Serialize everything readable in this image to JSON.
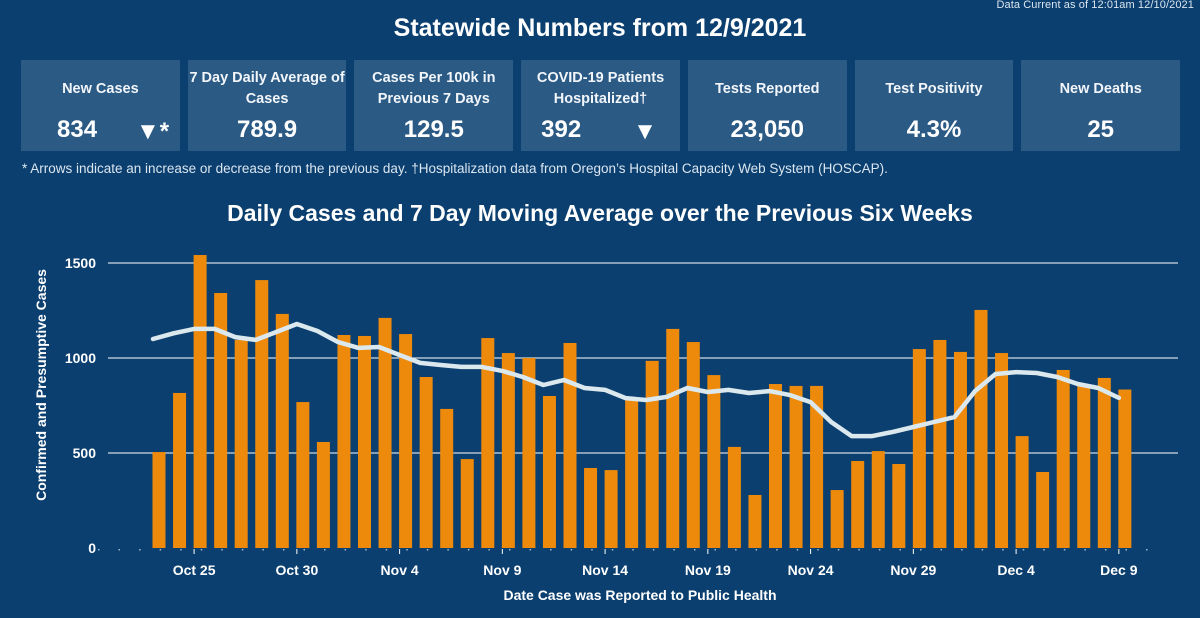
{
  "header": {
    "data_current": "Data Current as of 12:01am 12/10/2021",
    "title": "Statewide Numbers from 12/9/2021"
  },
  "cards": [
    {
      "label": "New Cases",
      "value": "834",
      "arrow": "▼*",
      "trend": "down"
    },
    {
      "label": "7 Day Daily Average of Cases",
      "value": "789.9"
    },
    {
      "label": "Cases Per 100k in Previous 7 Days",
      "value": "129.5"
    },
    {
      "label": "COVID-19 Patients Hospitalized†",
      "value": "392",
      "arrow": "▼",
      "trend": "down"
    },
    {
      "label": "Tests Reported",
      "value": "23,050"
    },
    {
      "label": "Test Positivity",
      "value": "4.3%"
    },
    {
      "label": "New Deaths",
      "value": "25"
    }
  ],
  "footnote": "* Arrows indicate an increase or decrease from the previous day. †Hospitalization data from Oregon’s Hospital Capacity Web System (HOSCAP).",
  "colors": {
    "background": "#0b3f6f",
    "card": "#2b5a85",
    "bar": "#ee8a0b",
    "line": "#dbe9ef",
    "grid": "#ffffff"
  },
  "chart_data": {
    "type": "bar",
    "title": "Daily Cases and 7 Day Moving Average over the Previous Six Weeks",
    "xlabel": "Date Case was Reported to Public Health",
    "ylabel": "Confirmed and Presumptive Cases",
    "ylim": [
      0,
      1600
    ],
    "yticks": [
      0,
      500,
      1000,
      1500
    ],
    "ytick_labels": [
      "0",
      "500",
      "1000",
      "1500"
    ],
    "grid": true,
    "x_tick_labels": [
      {
        "index": 2,
        "label": "Oct 25"
      },
      {
        "index": 7,
        "label": "Oct 30"
      },
      {
        "index": 12,
        "label": "Nov 4"
      },
      {
        "index": 17,
        "label": "Nov 9"
      },
      {
        "index": 22,
        "label": "Nov 14"
      },
      {
        "index": 27,
        "label": "Nov 19"
      },
      {
        "index": 32,
        "label": "Nov 24"
      },
      {
        "index": 37,
        "label": "Nov 29"
      },
      {
        "index": 42,
        "label": "Dec 4"
      },
      {
        "index": 47,
        "label": "Dec 9"
      }
    ],
    "categories": [
      "Oct 23",
      "Oct 24",
      "Oct 25",
      "Oct 26",
      "Oct 27",
      "Oct 28",
      "Oct 29",
      "Oct 30",
      "Oct 31",
      "Nov 1",
      "Nov 2",
      "Nov 3",
      "Nov 4",
      "Nov 5",
      "Nov 6",
      "Nov 7",
      "Nov 8",
      "Nov 9",
      "Nov 10",
      "Nov 11",
      "Nov 12",
      "Nov 13",
      "Nov 14",
      "Nov 15",
      "Nov 16",
      "Nov 17",
      "Nov 18",
      "Nov 19",
      "Nov 20",
      "Nov 21",
      "Nov 22",
      "Nov 23",
      "Nov 24",
      "Nov 25",
      "Nov 26",
      "Nov 27",
      "Nov 28",
      "Nov 29",
      "Nov 30",
      "Dec 1",
      "Dec 2",
      "Dec 3",
      "Dec 4",
      "Dec 5",
      "Dec 6",
      "Dec 7",
      "Dec 8",
      "Dec 9"
    ],
    "series": [
      {
        "name": "Daily Cases",
        "type": "bar",
        "values": [
          505,
          816,
          1542,
          1342,
          1095,
          1410,
          1232,
          768,
          558,
          1121,
          1116,
          1211,
          1126,
          900,
          732,
          468,
          1105,
          1026,
          1000,
          800,
          1079,
          421,
          410,
          785,
          985,
          1153,
          1084,
          910,
          532,
          279,
          863,
          853,
          853,
          305,
          458,
          510,
          442,
          1047,
          1095,
          1032,
          1253,
          1026,
          589,
          400,
          937,
          853,
          895,
          834
        ]
      },
      {
        "name": "7 Day Moving Average",
        "type": "line",
        "values": [
          1100,
          1130,
          1153,
          1153,
          1110,
          1095,
          1137,
          1179,
          1142,
          1084,
          1053,
          1058,
          1016,
          974,
          963,
          953,
          953,
          932,
          900,
          858,
          884,
          842,
          832,
          789,
          779,
          795,
          842,
          821,
          832,
          816,
          826,
          805,
          768,
          663,
          589,
          589,
          611,
          637,
          663,
          689,
          826,
          916,
          926,
          921,
          900,
          863,
          842,
          790
        ]
      }
    ]
  }
}
